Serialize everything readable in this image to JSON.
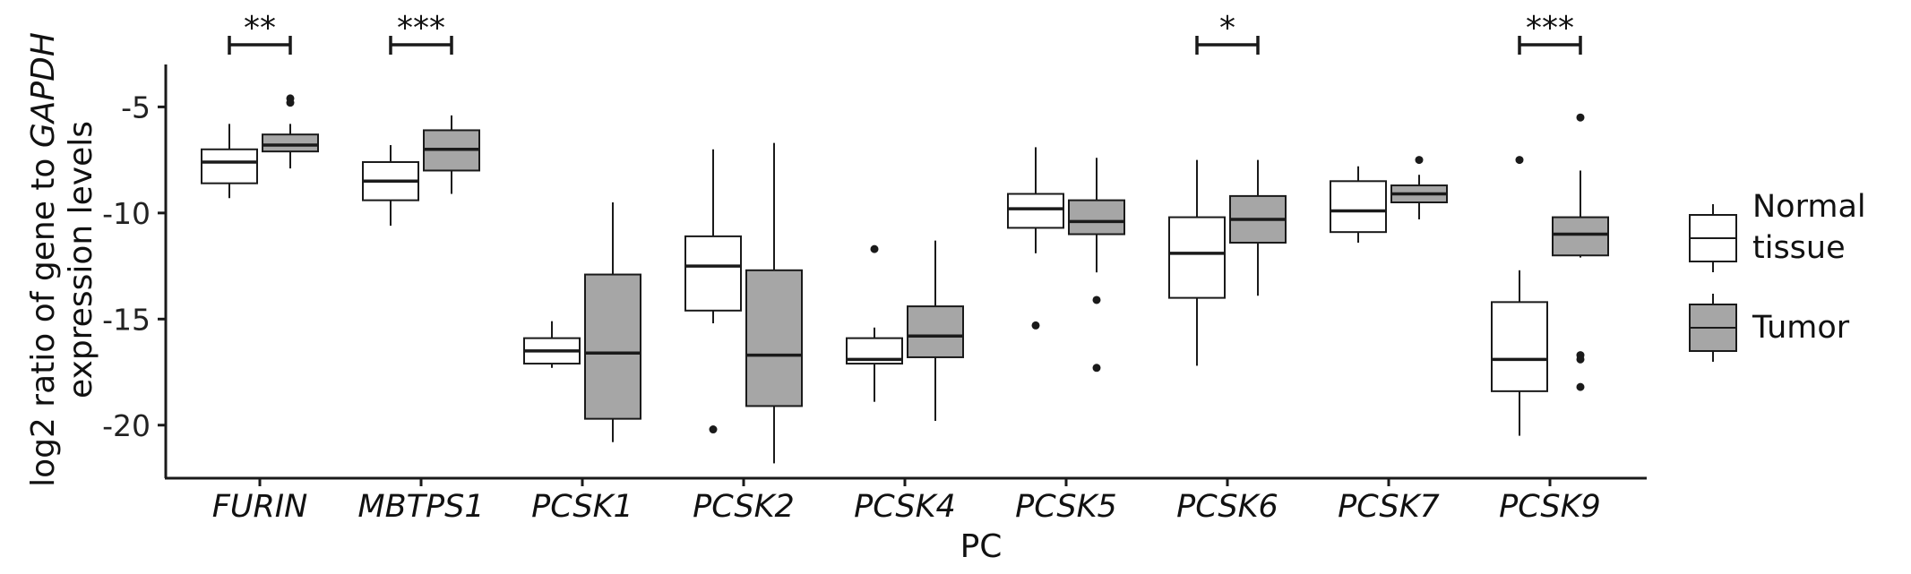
{
  "chart_data": {
    "type": "boxplot",
    "xlabel": "PC",
    "ylabel": {
      "prefix": "log2 ratio of gene to ",
      "gene": "GAPDH",
      "line2": "expression levels"
    },
    "ylim": [
      -22.5,
      -3
    ],
    "yticks": [
      -5,
      -10,
      -15,
      -20
    ],
    "ytick_labels": [
      "-5",
      "-10",
      "-15",
      "-20"
    ],
    "categories": [
      "FURIN",
      "MBTPS1",
      "PCSK1",
      "PCSK2",
      "PCSK4",
      "PCSK5",
      "PCSK6",
      "PCSK7",
      "PCSK9"
    ],
    "legend": {
      "position": "right",
      "entries": [
        {
          "label_lines": [
            "Normal",
            "tissue"
          ],
          "color": "#ffffff"
        },
        {
          "label_lines": [
            "Tumor"
          ],
          "color": "#a6a6a6"
        }
      ]
    },
    "colors": {
      "normal": "#ffffff",
      "tumor": "#a6a6a6",
      "stroke": "#1a1a1a"
    },
    "series": [
      {
        "name": "Normal tissue",
        "boxes": [
          {
            "whisker_low": -9.3,
            "q1": -8.6,
            "median": -7.6,
            "q3": -7.0,
            "whisker_high": -5.8,
            "outliers": []
          },
          {
            "whisker_low": -10.6,
            "q1": -9.4,
            "median": -8.5,
            "q3": -7.6,
            "whisker_high": -6.8,
            "outliers": []
          },
          {
            "whisker_low": -17.3,
            "q1": -17.1,
            "median": -16.5,
            "q3": -15.9,
            "whisker_high": -15.1,
            "outliers": []
          },
          {
            "whisker_low": -15.2,
            "q1": -14.6,
            "median": -12.5,
            "q3": -11.1,
            "whisker_high": -7.0,
            "outliers": [
              -20.2
            ]
          },
          {
            "whisker_low": -18.9,
            "q1": -17.1,
            "median": -16.9,
            "q3": -15.9,
            "whisker_high": -15.4,
            "outliers": [
              -11.7
            ]
          },
          {
            "whisker_low": -11.9,
            "q1": -10.7,
            "median": -9.8,
            "q3": -9.1,
            "whisker_high": -6.9,
            "outliers": [
              -15.3
            ]
          },
          {
            "whisker_low": -17.2,
            "q1": -14.0,
            "median": -11.9,
            "q3": -10.2,
            "whisker_high": -7.5,
            "outliers": []
          },
          {
            "whisker_low": -11.4,
            "q1": -10.9,
            "median": -9.9,
            "q3": -8.5,
            "whisker_high": -7.8,
            "outliers": []
          },
          {
            "whisker_low": -20.5,
            "q1": -18.4,
            "median": -16.9,
            "q3": -14.2,
            "whisker_high": -12.7,
            "outliers": [
              -7.5
            ]
          }
        ]
      },
      {
        "name": "Tumor",
        "boxes": [
          {
            "whisker_low": -7.9,
            "q1": -7.1,
            "median": -6.8,
            "q3": -6.3,
            "whisker_high": -5.8,
            "outliers": [
              -4.6,
              -4.8
            ]
          },
          {
            "whisker_low": -9.1,
            "q1": -8.0,
            "median": -7.0,
            "q3": -6.1,
            "whisker_high": -5.4,
            "outliers": []
          },
          {
            "whisker_low": -20.8,
            "q1": -19.7,
            "median": -16.6,
            "q3": -12.9,
            "whisker_high": -9.5,
            "outliers": []
          },
          {
            "whisker_low": -21.8,
            "q1": -19.1,
            "median": -16.7,
            "q3": -12.7,
            "whisker_high": -6.7,
            "outliers": []
          },
          {
            "whisker_low": -19.8,
            "q1": -16.8,
            "median": -15.8,
            "q3": -14.4,
            "whisker_high": -11.3,
            "outliers": []
          },
          {
            "whisker_low": -12.8,
            "q1": -11.0,
            "median": -10.4,
            "q3": -9.4,
            "whisker_high": -7.4,
            "outliers": [
              -14.1,
              -17.3
            ]
          },
          {
            "whisker_low": -13.9,
            "q1": -11.4,
            "median": -10.3,
            "q3": -9.2,
            "whisker_high": -7.5,
            "outliers": []
          },
          {
            "whisker_low": -10.3,
            "q1": -9.5,
            "median": -9.1,
            "q3": -8.7,
            "whisker_high": -8.2,
            "outliers": [
              -7.5
            ]
          },
          {
            "whisker_low": -12.1,
            "q1": -12.0,
            "median": -11.0,
            "q3": -10.2,
            "whisker_high": -8.0,
            "outliers": [
              -5.5,
              -16.7,
              -16.9,
              -18.2
            ]
          }
        ]
      }
    ],
    "significance": [
      {
        "category": "FURIN",
        "label": "**"
      },
      {
        "category": "MBTPS1",
        "label": "***"
      },
      {
        "category": "PCSK6",
        "label": "*"
      },
      {
        "category": "PCSK9",
        "label": "***"
      }
    ]
  }
}
